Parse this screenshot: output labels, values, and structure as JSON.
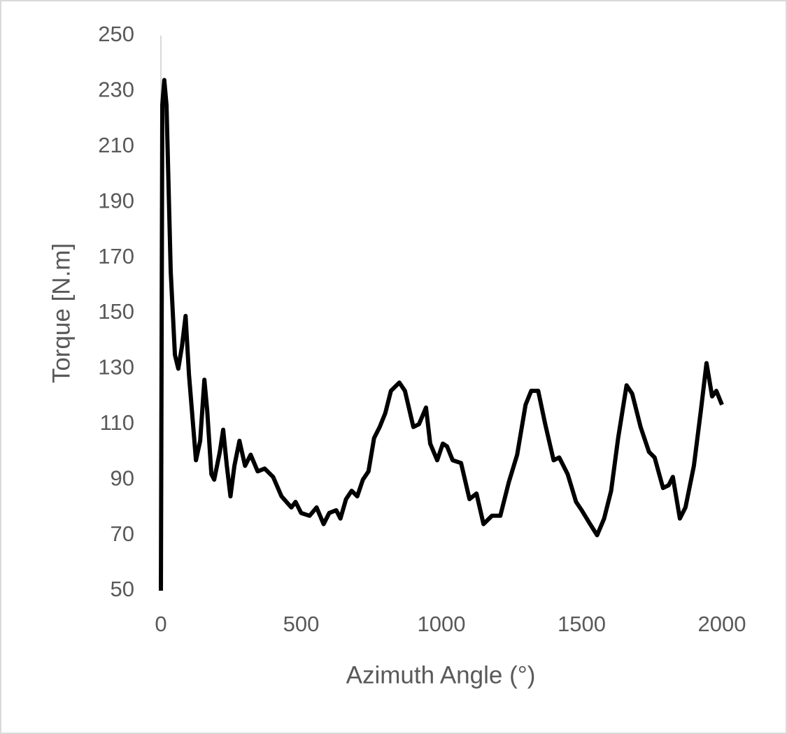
{
  "chart_data": {
    "type": "line",
    "x_label": "Azimuth Angle (°)",
    "y_label": "Torque [N.m]",
    "xlim": [
      0,
      2000
    ],
    "xticks": [
      0,
      500,
      1000,
      1500,
      2000
    ],
    "ylim": [
      50,
      250
    ],
    "yticks": [
      50,
      70,
      90,
      110,
      130,
      150,
      170,
      190,
      210,
      230,
      250
    ],
    "grid": false,
    "x": [
      0,
      5,
      12,
      20,
      35,
      50,
      62,
      75,
      88,
      100,
      125,
      140,
      155,
      165,
      180,
      190,
      210,
      222,
      235,
      248,
      262,
      280,
      300,
      320,
      345,
      370,
      400,
      430,
      465,
      480,
      500,
      530,
      555,
      580,
      600,
      625,
      640,
      660,
      680,
      700,
      720,
      740,
      760,
      780,
      800,
      820,
      850,
      870,
      900,
      920,
      945,
      960,
      985,
      1005,
      1020,
      1040,
      1070,
      1100,
      1125,
      1150,
      1180,
      1210,
      1240,
      1270,
      1300,
      1320,
      1345,
      1370,
      1400,
      1420,
      1450,
      1480,
      1500,
      1530,
      1555,
      1580,
      1605,
      1630,
      1660,
      1680,
      1710,
      1740,
      1760,
      1790,
      1810,
      1825,
      1850,
      1870,
      1900,
      1925,
      1945,
      1965,
      1980,
      2000
    ],
    "series": [
      {
        "name": "Torque",
        "color": "#000000",
        "values": [
          50,
          225,
          234,
          225,
          165,
          135,
          130,
          138,
          149,
          128,
          97,
          104,
          126,
          115,
          92,
          90,
          100,
          108,
          95,
          84,
          95,
          104,
          95,
          99,
          93,
          94,
          91,
          84,
          80,
          82,
          78,
          77,
          80,
          74,
          78,
          79,
          76,
          83,
          86,
          84,
          90,
          93,
          105,
          109,
          114,
          122,
          125,
          122,
          109,
          110,
          116,
          103,
          97,
          103,
          102,
          97,
          96,
          83,
          85,
          74,
          77,
          77,
          89,
          99,
          117,
          122,
          122,
          110,
          97,
          98,
          92,
          82,
          79,
          74,
          70,
          76,
          86,
          105,
          124,
          121,
          109,
          100,
          98,
          87,
          88,
          91,
          76,
          80,
          95,
          115,
          132,
          120,
          122,
          117
        ]
      }
    ]
  }
}
